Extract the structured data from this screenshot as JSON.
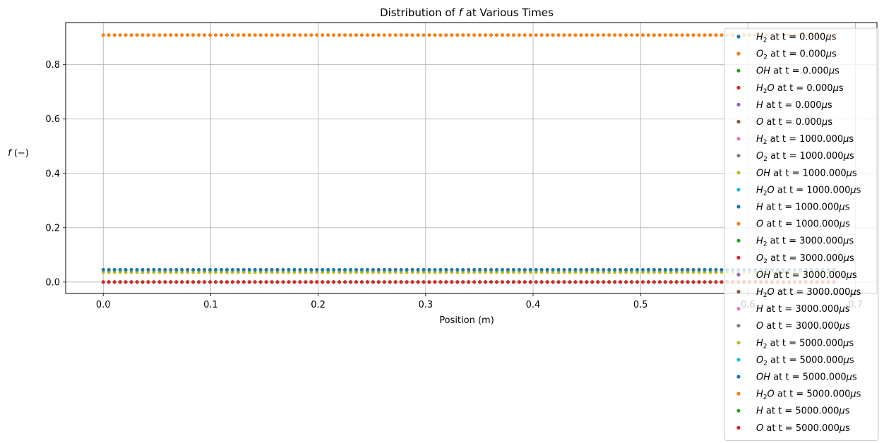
{
  "chart_data": {
    "type": "scatter",
    "title": "Distribution of f at Various Times",
    "title_parts": {
      "prefix": "Distribution of ",
      "symbol": "f",
      "suffix": " at Various Times"
    },
    "xlabel": "Position (m)",
    "ylabel": "f (−)",
    "ylabel_parts": {
      "symbol": "f",
      "unit": " (−)"
    },
    "xlim": [
      -0.035,
      0.72
    ],
    "ylim": [
      -0.042,
      0.955
    ],
    "x_ticks": [
      0.0,
      0.1,
      0.2,
      0.3,
      0.4,
      0.5,
      0.6,
      0.7
    ],
    "x_tick_labels": [
      "0.0",
      "0.1",
      "0.2",
      "0.3",
      "0.4",
      "0.5",
      "0.6",
      "0.7"
    ],
    "y_ticks": [
      0.0,
      0.2,
      0.4,
      0.6,
      0.8
    ],
    "y_tick_labels": [
      "0.0",
      "0.2",
      "0.4",
      "0.6",
      "0.8"
    ],
    "grid": true,
    "legend_position": "right",
    "x_range_data": [
      0.0,
      0.68
    ],
    "points_per_series": 131,
    "series": [
      {
        "species": "H",
        "sub": "2",
        "time": "0.000",
        "color": "#1f77b4",
        "value": 0.045
      },
      {
        "species": "O",
        "sub": "2",
        "time": "0.000",
        "color": "#ff7f0e",
        "value": 0.909
      },
      {
        "species": "OH",
        "sub": "",
        "time": "0.000",
        "color": "#2ca02c",
        "value": 0.0
      },
      {
        "species": "H",
        "sub": "2",
        "extra": "O",
        "time": "0.000",
        "color": "#d62728",
        "value": 0.0
      },
      {
        "species": "H",
        "sub": "",
        "time": "0.000",
        "color": "#9467bd",
        "value": 0.0
      },
      {
        "species": "O",
        "sub": "",
        "time": "0.000",
        "color": "#8c564b",
        "value": 0.0
      },
      {
        "species": "H",
        "sub": "2",
        "time": "1000.000",
        "color": "#e377c2",
        "value": 0.045
      },
      {
        "species": "O",
        "sub": "2",
        "time": "1000.000",
        "color": "#7f7f7f",
        "value": 0.909
      },
      {
        "species": "OH",
        "sub": "",
        "time": "1000.000",
        "color": "#bcbd22",
        "value": 0.036
      },
      {
        "species": "H",
        "sub": "2",
        "extra": "O",
        "time": "1000.000",
        "color": "#17becf",
        "value": 0.045
      },
      {
        "species": "H",
        "sub": "",
        "time": "1000.000",
        "color": "#1f77b4",
        "value": 0.045
      },
      {
        "species": "O",
        "sub": "",
        "time": "1000.000",
        "color": "#ff7f0e",
        "value": 0.909
      },
      {
        "species": "H",
        "sub": "2",
        "time": "3000.000",
        "color": "#2ca02c",
        "value": 0.0
      },
      {
        "species": "O",
        "sub": "2",
        "time": "3000.000",
        "color": "#d62728",
        "value": 0.0
      },
      {
        "species": "OH",
        "sub": "",
        "time": "3000.000",
        "color": "#9467bd",
        "value": 0.0
      },
      {
        "species": "H",
        "sub": "2",
        "extra": "O",
        "time": "3000.000",
        "color": "#8c564b",
        "value": 0.0
      },
      {
        "species": "H",
        "sub": "",
        "time": "3000.000",
        "color": "#e377c2",
        "value": 0.0
      },
      {
        "species": "O",
        "sub": "",
        "time": "3000.000",
        "color": "#7f7f7f",
        "value": 0.0
      },
      {
        "species": "H",
        "sub": "2",
        "time": "5000.000",
        "color": "#bcbd22",
        "value": 0.036
      },
      {
        "species": "O",
        "sub": "2",
        "time": "5000.000",
        "color": "#17becf",
        "value": 0.045
      },
      {
        "species": "OH",
        "sub": "",
        "time": "5000.000",
        "color": "#1f77b4",
        "value": 0.045
      },
      {
        "species": "H",
        "sub": "2",
        "extra": "O",
        "time": "5000.000",
        "color": "#ff7f0e",
        "value": 0.909
      },
      {
        "species": "H",
        "sub": "",
        "time": "5000.000",
        "color": "#2ca02c",
        "value": 0.0
      },
      {
        "species": "O",
        "sub": "",
        "time": "5000.000",
        "color": "#d62728",
        "value": 0.0
      }
    ],
    "legend_label_middle": " at t = ",
    "legend_unit_mu": "μ",
    "legend_unit_s": "s"
  }
}
